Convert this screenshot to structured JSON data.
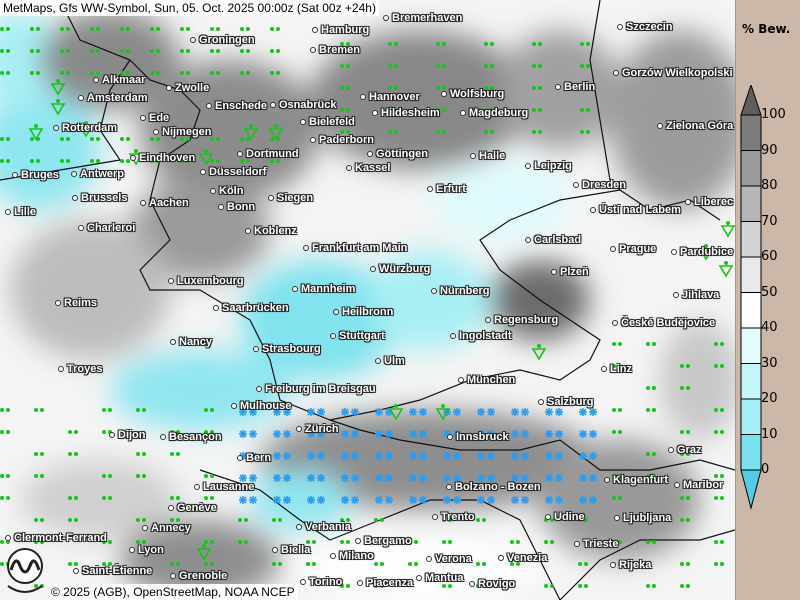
{
  "title": "MetMaps, Gfs WW-Symbol, Sun, 05. Oct. 2025 00:00z (Sat 00z +24h)",
  "copyright": "© 2025 (AGB), OpenStreetMap, NOAA NCEP",
  "logo_text": "METMAPS",
  "legend": {
    "unit": "% Bew.",
    "ticks": [
      "100",
      "90",
      "80",
      "70",
      "60",
      "50",
      "40",
      "30",
      "20",
      "10",
      "0"
    ],
    "colors": [
      "#5e5e5e",
      "#7c7c7c",
      "#9a9a9a",
      "#b6b6b6",
      "#d4d4d4",
      "#e9e9e9",
      "#ffffff",
      "#e2fbfd",
      "#c4f5f9",
      "#a4eff5",
      "#7ae2ee",
      "#52cbe6"
    ]
  },
  "symbols": {
    "rain": "green-dots",
    "snow": "blue-asterisk",
    "shower": "green-triangle"
  },
  "cities": [
    "Bremerhaven",
    "Hamburg",
    "Szczecin",
    "Groningen",
    "Bremen",
    "Gorzów Wielkopolski",
    "Alkmaar",
    "Zwolle",
    "Amsterdam",
    "Hannover",
    "Wolfsburg",
    "Berlin",
    "Enschede",
    "Osnabrück",
    "Ede",
    "Hildesheim",
    "Magdeburg",
    "Rotterdam",
    "Nijmegen",
    "Bielefeld",
    "Zielona Góra",
    "Paderborn",
    "Eindhoven",
    "Dortmund",
    "Göttingen",
    "Halle",
    "Leipzig",
    "Kassel",
    "Bruges",
    "Antwerp",
    "Düsseldorf",
    "Dresden",
    "Köln",
    "Erfurt",
    "Brussels",
    "Aachen",
    "Bonn",
    "Siegen",
    "Ústí nad Labem",
    "Liberec",
    "Lille",
    "Charleroi",
    "Koblenz",
    "Carlsbad",
    "Prague",
    "Pardubice",
    "Frankfurt am Main",
    "Würzburg",
    "Plzeň",
    "Luxembourg",
    "Mannheim",
    "Nürnberg",
    "Jihlava",
    "Reims",
    "Saarbrücken",
    "Heilbronn",
    "Regensburg",
    "České Budějovice",
    "Stuttgart",
    "Ingolstadt",
    "Nancy",
    "Strasbourg",
    "Ulm",
    "Troyes",
    "Linz",
    "München",
    "Freiburg im Breisgau",
    "Mulhouse",
    "Salzburg",
    "Zürich",
    "Dijon",
    "Besançon",
    "Innsbruck",
    "Graz",
    "Bern",
    "Lausanne",
    "Klagenfurt",
    "Maribor",
    "Bolzano - Bozen",
    "Genève",
    "Trento",
    "Udine",
    "Ljubljana",
    "Annecy",
    "Verbania",
    "Bergamo",
    "Clermont-Ferrand",
    "Lyon",
    "Trieste",
    "Saint-Étienne",
    "Biella",
    "Milano",
    "Verona",
    "Venezia",
    "Rijeka",
    "Grenoble",
    "Torino",
    "Piacenza",
    "Mantua",
    "Rovigo"
  ]
}
